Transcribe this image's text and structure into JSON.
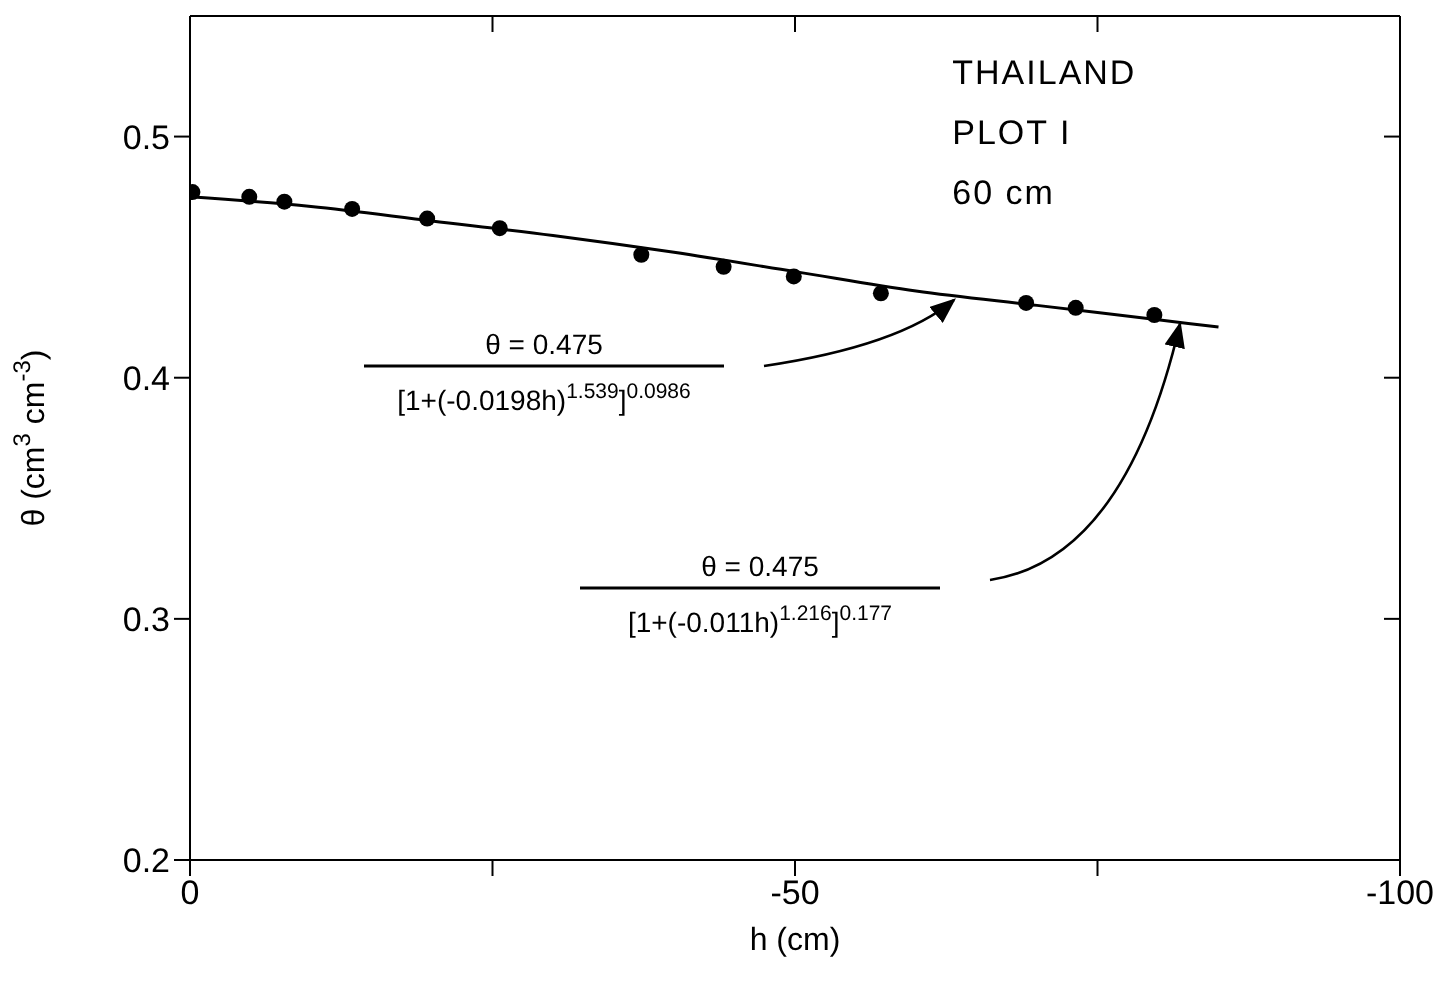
{
  "chart_data": {
    "type": "scatter",
    "xlabel": "h (cm)",
    "ylabel": "θ (cm$^{3}$ cm$^{-3}$)",
    "xlim": [
      0,
      -100
    ],
    "xticks": [
      0,
      {
        "value": -25,
        "label": null
      },
      -50,
      {
        "value": -75,
        "label": null
      },
      -100
    ],
    "ylim": [
      0.2,
      0.55
    ],
    "yticks": [
      0.2,
      0.3,
      0.4,
      0.5
    ],
    "series": [
      {
        "color": "#000000",
        "marker": "circle",
        "x": [
          -0.2,
          -4.9,
          -7.8,
          -13.4,
          -19.6,
          -25.6,
          -37.3,
          -44.1,
          -49.9,
          -57.1,
          -69.1,
          -73.2,
          -79.7
        ],
        "values": [
          0.477,
          0.475,
          0.473,
          0.47,
          0.466,
          0.462,
          0.451,
          0.446,
          0.442,
          0.435,
          0.431,
          0.429,
          0.426
        ]
      },
      {
        "type": "line",
        "color": "#000000",
        "marker": "none",
        "line_style": "solid",
        "x": [
          0,
          -10,
          -20,
          -30,
          -40,
          -50,
          -60,
          -70,
          -80,
          -85
        ],
        "values": [
          0.475,
          0.471,
          0.465,
          0.459,
          0.452,
          0.444,
          0.436,
          0.43,
          0.424,
          0.421
        ]
      }
    ],
    "annotations": [
      "THAILAND",
      "PLOT I",
      "60 cm",
      "θ = 0.475\n[1+(-0.0198h)$^{1.539}$]$^{0.0986}$",
      "θ = 0.475\n[1+(-0.011h)$^{1.216}$]$^{0.177}$"
    ]
  }
}
